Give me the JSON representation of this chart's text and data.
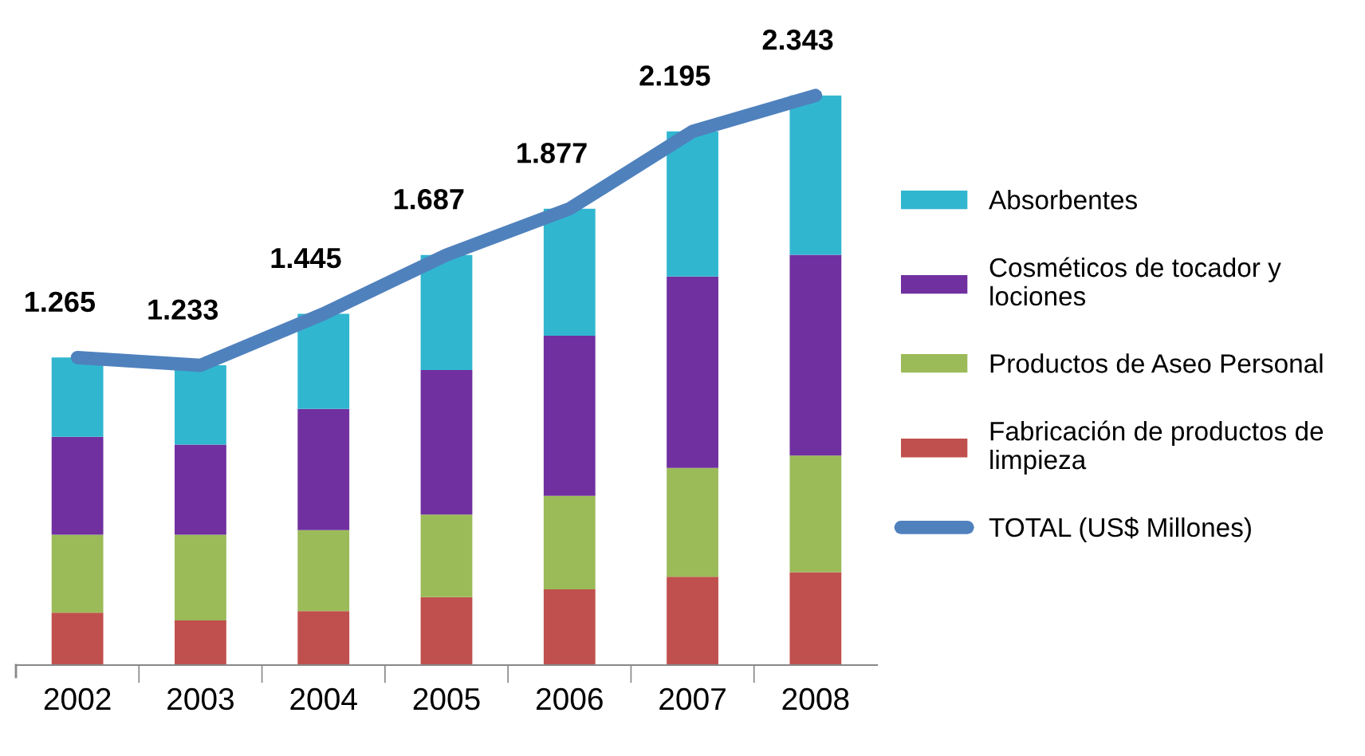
{
  "chart_data": {
    "type": "bar",
    "stacked": true,
    "categories": [
      "2002",
      "2003",
      "2004",
      "2005",
      "2006",
      "2007",
      "2008"
    ],
    "tick_labels": "x",
    "grid": false,
    "legend": "right",
    "series": [
      {
        "name": "Fabricación de productos de limpieza",
        "color": "#c0504d",
        "values": [
          216,
          184,
          222,
          280,
          312,
          363,
          382
        ]
      },
      {
        "name": "Productos de Aseo Personal",
        "color": "#9bbb59",
        "values": [
          320,
          352,
          333,
          339,
          384,
          448,
          480
        ]
      },
      {
        "name": "Cosméticos de tocador y lociones",
        "color": "#7030a0",
        "values": [
          403,
          371,
          499,
          595,
          659,
          787,
          826
        ]
      },
      {
        "name": "Absorbentes",
        "color": "#31b6d0",
        "values": [
          326,
          326,
          391,
          473,
          522,
          597,
          655
        ]
      },
      {
        "name": "TOTAL (US$ Millones)",
        "type": "line",
        "color": "#4f81bd",
        "values": [
          1265,
          1233,
          1445,
          1687,
          1877,
          2195,
          2343
        ],
        "value_labels": [
          "1.265",
          "1.233",
          "1.445",
          "1.687",
          "1.877",
          "2.195",
          "2.343"
        ]
      }
    ]
  }
}
